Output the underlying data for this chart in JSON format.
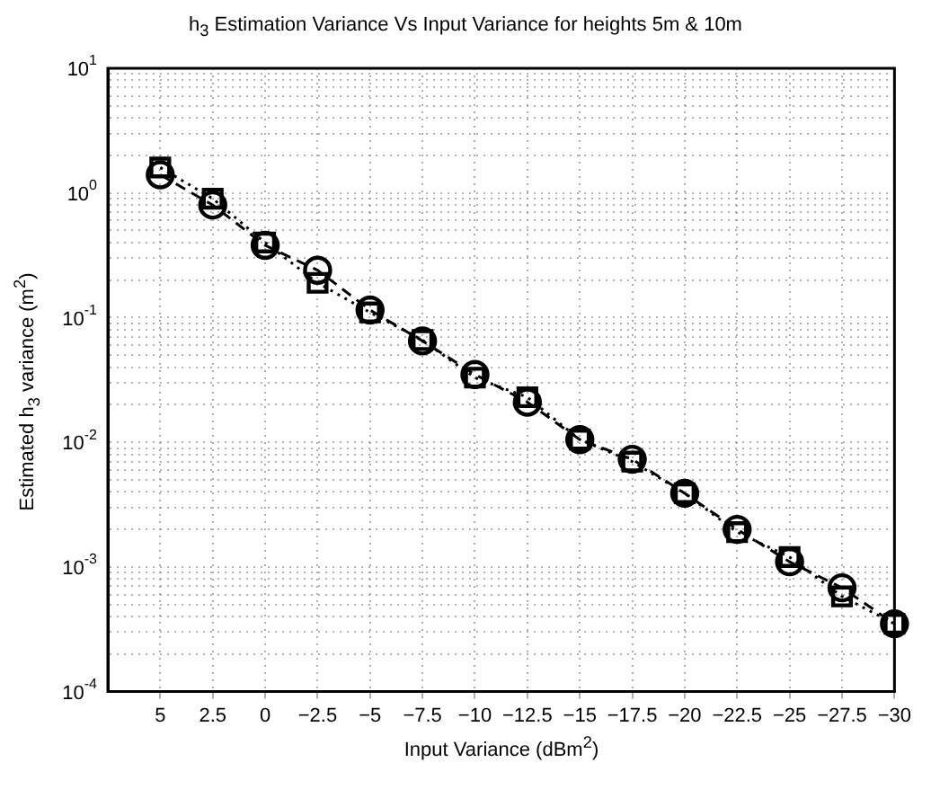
{
  "chart_data": {
    "type": "line",
    "title": "h$_{3}$ Estimation Variance Vs Input Variance for heights 5m & 10m",
    "xlabel": "Input Variance (dBm$^{2}$)",
    "ylabel": "Estimated h$_{3}$ variance (m$^{2}$)",
    "x": [
      5,
      2.5,
      0,
      -2.5,
      -5,
      -7.5,
      -10,
      -12.5,
      -15,
      -17.5,
      -20,
      -22.5,
      -25,
      -27.5,
      -30
    ],
    "series": [
      {
        "color": "#000000",
        "marker": "circle",
        "line_style": "dashed",
        "values": [
          1.4,
          0.8,
          0.38,
          0.24,
          0.115,
          0.065,
          0.035,
          0.021,
          0.0105,
          0.0073,
          0.0039,
          0.002,
          0.0011,
          0.00068,
          0.00035
        ]
      },
      {
        "color": "#000000",
        "marker": "square",
        "line_style": "dotted",
        "values": [
          1.6,
          0.9,
          0.4,
          0.19,
          0.11,
          0.066,
          0.033,
          0.023,
          0.0105,
          0.007,
          0.0039,
          0.0019,
          0.0012,
          0.00058,
          0.00035
        ]
      }
    ],
    "log": "y",
    "xlim": [
      7.5,
      -30
    ],
    "ylim": [
      0.0001,
      10
    ],
    "xticks": [
      5,
      2.5,
      0,
      -2.5,
      -5,
      -7.5,
      -10,
      -12.5,
      -15,
      -17.5,
      -20,
      -22.5,
      -25,
      -27.5,
      -30
    ],
    "yticks": [
      {
        "value": 0.0001,
        "label": "10$^{-4}$"
      },
      {
        "value": 0.0002,
        "label": null
      },
      {
        "value": 0.0003,
        "label": null
      },
      {
        "value": 0.0004,
        "label": null
      },
      {
        "value": 0.0005,
        "label": null
      },
      {
        "value": 0.0006,
        "label": null
      },
      {
        "value": 0.0007,
        "label": null
      },
      {
        "value": 0.0008,
        "label": null
      },
      {
        "value": 0.0009,
        "label": null
      },
      {
        "value": 0.001,
        "label": "10$^{-3}$"
      },
      {
        "value": 0.002,
        "label": null
      },
      {
        "value": 0.003,
        "label": null
      },
      {
        "value": 0.004,
        "label": null
      },
      {
        "value": 0.005,
        "label": null
      },
      {
        "value": 0.006,
        "label": null
      },
      {
        "value": 0.007,
        "label": null
      },
      {
        "value": 0.008,
        "label": null
      },
      {
        "value": 0.009,
        "label": null
      },
      {
        "value": 0.01,
        "label": "10$^{-2}$"
      },
      {
        "value": 0.02,
        "label": null
      },
      {
        "value": 0.03,
        "label": null
      },
      {
        "value": 0.04,
        "label": null
      },
      {
        "value": 0.05,
        "label": null
      },
      {
        "value": 0.06,
        "label": null
      },
      {
        "value": 0.07,
        "label": null
      },
      {
        "value": 0.08,
        "label": null
      },
      {
        "value": 0.09,
        "label": null
      },
      {
        "value": 0.1,
        "label": "10$^{-1}$"
      },
      {
        "value": 0.2,
        "label": null
      },
      {
        "value": 0.3,
        "label": null
      },
      {
        "value": 0.4,
        "label": null
      },
      {
        "value": 0.5,
        "label": null
      },
      {
        "value": 0.6,
        "label": null
      },
      {
        "value": 0.7,
        "label": null
      },
      {
        "value": 0.8,
        "label": null
      },
      {
        "value": 0.9,
        "label": null
      },
      {
        "value": 1,
        "label": "10$^{0}$"
      },
      {
        "value": 2,
        "label": null
      },
      {
        "value": 3,
        "label": null
      },
      {
        "value": 4,
        "label": null
      },
      {
        "value": 5,
        "label": null
      },
      {
        "value": 6,
        "label": null
      },
      {
        "value": 7,
        "label": null
      },
      {
        "value": 8,
        "label": null
      },
      {
        "value": 9,
        "label": null
      },
      {
        "value": 10,
        "label": "10$^{1}$"
      }
    ],
    "grid": true
  }
}
